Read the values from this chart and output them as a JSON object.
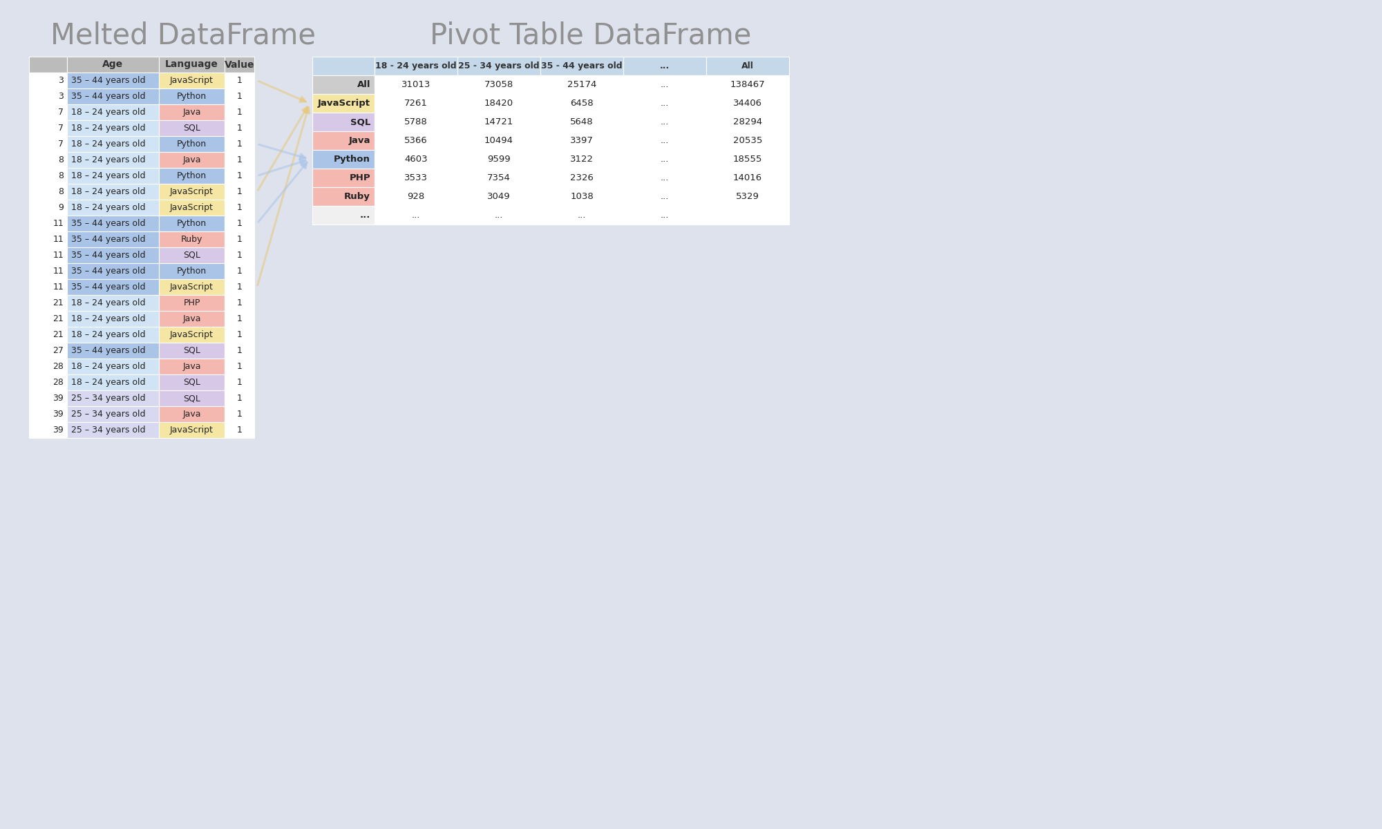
{
  "title_left": "Melted DataFrame",
  "title_right": "Pivot Table DataFrame",
  "bg_color": "#dde2ed",
  "melted_header_bg": "#bbbbbb",
  "melted_col_headers": [
    "",
    "Age",
    "Language",
    "Value"
  ],
  "melted_rows": [
    [
      "3",
      "35 – 44 years old",
      "JavaScript",
      "1"
    ],
    [
      "3",
      "35 – 44 years old",
      "Python",
      "1"
    ],
    [
      "7",
      "18 – 24 years old",
      "Java",
      "1"
    ],
    [
      "7",
      "18 – 24 years old",
      "SQL",
      "1"
    ],
    [
      "7",
      "18 – 24 years old",
      "Python",
      "1"
    ],
    [
      "8",
      "18 – 24 years old",
      "Java",
      "1"
    ],
    [
      "8",
      "18 – 24 years old",
      "Python",
      "1"
    ],
    [
      "8",
      "18 – 24 years old",
      "JavaScript",
      "1"
    ],
    [
      "9",
      "18 – 24 years old",
      "JavaScript",
      "1"
    ],
    [
      "11",
      "35 – 44 years old",
      "Python",
      "1"
    ],
    [
      "11",
      "35 – 44 years old",
      "Ruby",
      "1"
    ],
    [
      "11",
      "35 – 44 years old",
      "SQL",
      "1"
    ],
    [
      "11",
      "35 – 44 years old",
      "Python",
      "1"
    ],
    [
      "11",
      "35 – 44 years old",
      "JavaScript",
      "1"
    ],
    [
      "21",
      "18 – 24 years old",
      "PHP",
      "1"
    ],
    [
      "21",
      "18 – 24 years old",
      "Java",
      "1"
    ],
    [
      "21",
      "18 – 24 years old",
      "JavaScript",
      "1"
    ],
    [
      "27",
      "35 – 44 years old",
      "SQL",
      "1"
    ],
    [
      "28",
      "18 – 24 years old",
      "Java",
      "1"
    ],
    [
      "28",
      "18 – 24 years old",
      "SQL",
      "1"
    ],
    [
      "39",
      "25 – 34 years old",
      "SQL",
      "1"
    ],
    [
      "39",
      "25 – 34 years old",
      "Java",
      "1"
    ],
    [
      "39",
      "25 – 34 years old",
      "JavaScript",
      "1"
    ]
  ],
  "lang_colors": {
    "JavaScript": "#f5e6a3",
    "Python": "#aac4e8",
    "Java": "#f5b8b0",
    "SQL": "#d8c8e8",
    "PHP": "#f5b8b0",
    "Ruby": "#f5b8b0"
  },
  "age_colors": {
    "35 – 44 years old": "#aac4e8",
    "18 – 24 years old": "#d0e4f5",
    "25 – 34 years old": "#d8d8f0"
  },
  "pivot_header_bg": "#c5d8ea",
  "pivot_index_bg": "#cccccc",
  "pivot_col_headers": [
    "18 - 24 years old",
    "25 - 34 years old",
    "35 - 44 years old",
    "...",
    "All"
  ],
  "pivot_row_labels": [
    "All",
    "JavaScript",
    "SQL",
    "Java",
    "Python",
    "PHP",
    "Ruby",
    "..."
  ],
  "pivot_data": [
    [
      "31013",
      "73058",
      "25174",
      "...",
      "138467"
    ],
    [
      "7261",
      "18420",
      "6458",
      "...",
      "34406"
    ],
    [
      "5788",
      "14721",
      "5648",
      "...",
      "28294"
    ],
    [
      "5366",
      "10494",
      "3397",
      "...",
      "20535"
    ],
    [
      "4603",
      "9599",
      "3122",
      "...",
      "18555"
    ],
    [
      "3533",
      "7354",
      "2326",
      "...",
      "14016"
    ],
    [
      "928",
      "3049",
      "1038",
      "...",
      "5329"
    ],
    [
      "...",
      "...",
      "...",
      "...",
      ""
    ]
  ],
  "pivot_row_colors": [
    "#cccccc",
    "#f5e6a3",
    "#d8c8e8",
    "#f5b8b0",
    "#aac4e8",
    "#f5b8b0",
    "#f5b8b0",
    "#ffffff"
  ],
  "arrow_specs": [
    {
      "from_row": 0,
      "to_row": 1,
      "color": "#e8c87a"
    },
    {
      "from_row": 7,
      "to_row": 1,
      "color": "#e8c87a"
    },
    {
      "from_row": 13,
      "to_row": 1,
      "color": "#e8c87a"
    },
    {
      "from_row": 4,
      "to_row": 4,
      "color": "#aac4e8"
    },
    {
      "from_row": 6,
      "to_row": 4,
      "color": "#aac4e8"
    },
    {
      "from_row": 9,
      "to_row": 4,
      "color": "#aac4e8"
    }
  ]
}
